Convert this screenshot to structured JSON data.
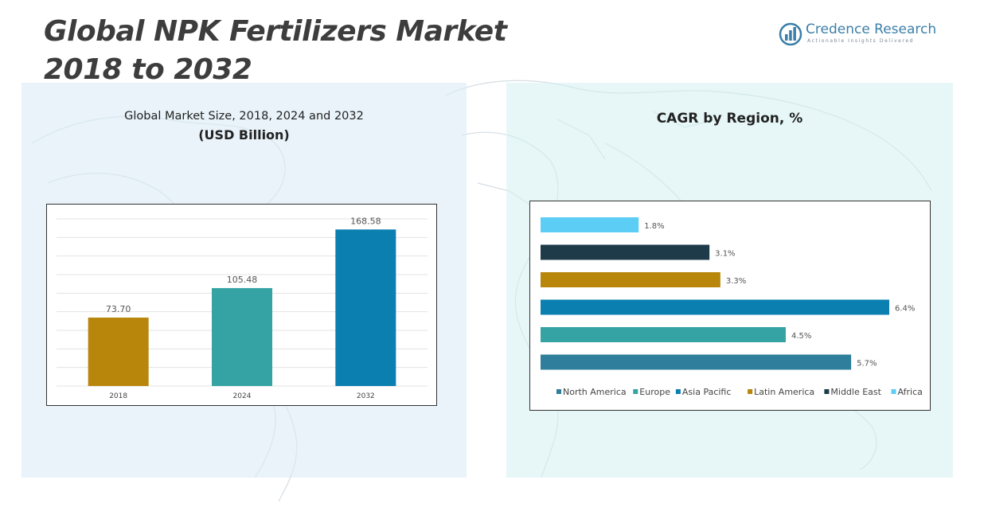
{
  "header": {
    "title_line1": "Global NPK Fertilizers Market",
    "title_line2": "2018 to 2032"
  },
  "logo": {
    "icon": "bar-chart-logo-icon",
    "name": "Credence Research",
    "tagline": "Actionable Insights Delivered",
    "color": "#3b7fa8"
  },
  "left_panel": {
    "title": "Global Market Size, 2018, 2024 and 2032",
    "subtitle": "(USD Billion)"
  },
  "right_panel": {
    "title": "CAGR by Region, %"
  },
  "chart_data": [
    {
      "type": "bar",
      "title": "Global Market Size, 2018, 2024 and 2032",
      "subtitle": "(USD Billion)",
      "categories": [
        "2018",
        "2024",
        "2032"
      ],
      "values": [
        73.7,
        105.48,
        168.58
      ],
      "value_labels": [
        "73.70",
        "105.48",
        "168.58"
      ],
      "colors": [
        "#b8860b",
        "#35a3a3",
        "#0a7fb0"
      ],
      "ylim": [
        0,
        180
      ],
      "grid": true
    },
    {
      "type": "bar",
      "orientation": "horizontal",
      "title": "CAGR by Region, %",
      "categories": [
        "Africa",
        "Middle East",
        "Latin America",
        "Asia Pacific",
        "Europe",
        "North America"
      ],
      "values": [
        1.8,
        3.1,
        3.3,
        6.4,
        4.5,
        5.7
      ],
      "value_labels": [
        "1.8%",
        "3.1%",
        "3.3%",
        "6.4%",
        "4.5%",
        "5.7%"
      ],
      "colors": [
        "#5ccdf5",
        "#1d3b49",
        "#b8860b",
        "#0a7fb0",
        "#35a3a3",
        "#2e7e9c"
      ],
      "legend_order": [
        "North America",
        "Europe",
        "Asia Pacific",
        "Latin America",
        "Middle East",
        "Africa"
      ],
      "legend_position": "bottom",
      "xlim": [
        0,
        6.4
      ],
      "grid": false
    }
  ]
}
